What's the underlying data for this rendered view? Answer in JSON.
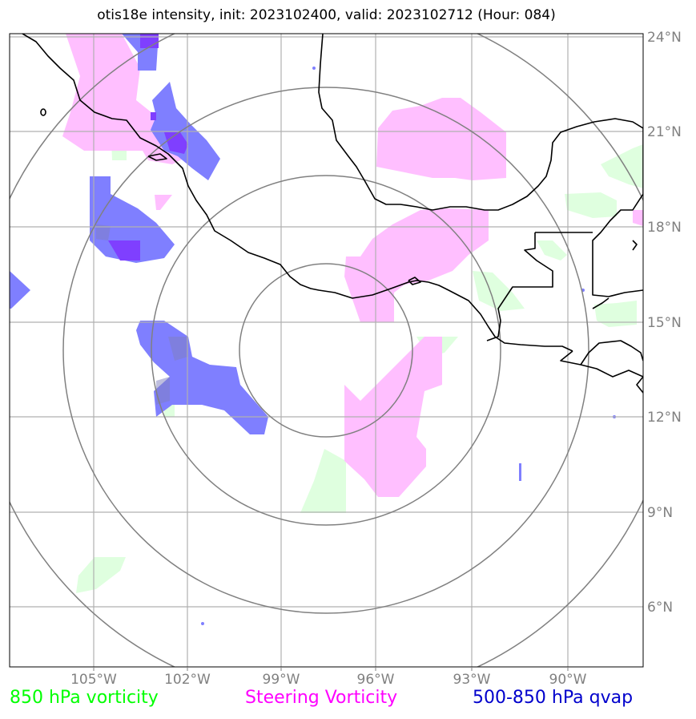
{
  "title": "otis18e intensity, init: 2023102400, valid: 2023102712 (Hour: 084)",
  "axes": {
    "lon_labels": [
      "105°W",
      "102°W",
      "99°W",
      "96°W",
      "93°W",
      "90°W"
    ],
    "lat_labels": [
      "24°N",
      "21°N",
      "18°N",
      "15°N",
      "12°N",
      "9°N",
      "6°N"
    ]
  },
  "legend": [
    {
      "label": "850 hPa vorticity",
      "color": "#00ff00"
    },
    {
      "label": "Steering Vorticity",
      "color": "#ff00ff"
    },
    {
      "label": "500-850 hPa qvap",
      "color": "#0000cc"
    }
  ],
  "colors": {
    "vorticity_fill": "#dfffdf",
    "steering_fill": "#ffbfff",
    "qvap_fill": "#7f7fff",
    "qvap_dark": "#7f3fff",
    "gridline": "#b0b0b0",
    "range_ring": "#808080",
    "coastline": "#000000"
  },
  "icons": {
    "range_rings": "concentric-range-rings",
    "coastline": "coastline-outline"
  }
}
